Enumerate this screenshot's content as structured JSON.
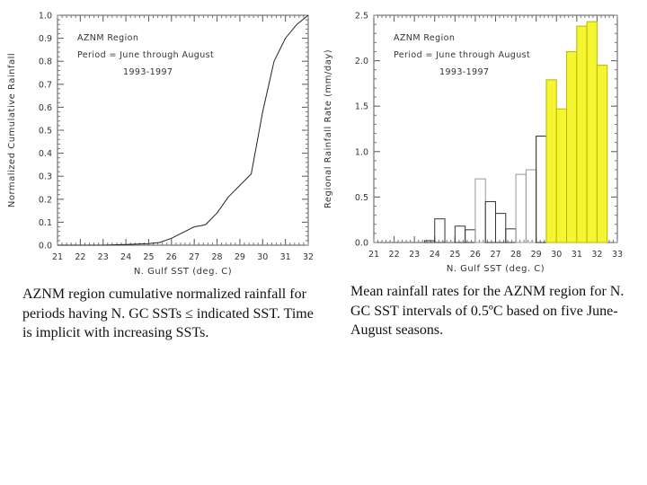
{
  "chart_data": [
    {
      "type": "line",
      "legend_lines": [
        "AZNM Region",
        "Period = June through August",
        "1993-1997"
      ],
      "xlabel": "N. Gulf SST (deg. C)",
      "ylabel": "Normalized Cumulative Rainfall",
      "xlim": [
        21,
        32
      ],
      "ylim": [
        0,
        1
      ],
      "x_ticks": [
        "21",
        "22",
        "23",
        "24",
        "25",
        "26",
        "27",
        "28",
        "29",
        "30",
        "31",
        "32"
      ],
      "y_ticks": [
        "0.0",
        "0.1",
        "0.2",
        "0.3",
        "0.4",
        "0.5",
        "0.6",
        "0.7",
        "0.8",
        "0.9",
        "1.0"
      ],
      "grid": false,
      "series": [
        {
          "x": [
            21,
            23,
            24.0,
            24.5,
            25.0,
            25.5,
            26.0,
            26.5,
            27.0,
            27.3,
            27.5,
            28.0,
            28.5,
            29.0,
            29.5,
            30.0,
            30.5,
            31.0,
            31.5,
            32.0
          ],
          "y": [
            0,
            0,
            0.003,
            0.005,
            0.007,
            0.012,
            0.03,
            0.055,
            0.08,
            0.085,
            0.09,
            0.14,
            0.21,
            0.26,
            0.31,
            0.58,
            0.8,
            0.9,
            0.96,
            1.0
          ]
        }
      ]
    },
    {
      "type": "bar",
      "legend_lines": [
        "AZNM Region",
        "Period = June through August",
        "1993-1997"
      ],
      "xlabel": "N. Gulf SST (deg. C)",
      "ylabel": "Regional Rainfall Rate (mm/day)",
      "xlim": [
        21,
        33
      ],
      "ylim": [
        0,
        2.5
      ],
      "x_ticks": [
        "21",
        "22",
        "23",
        "24",
        "25",
        "26",
        "27",
        "28",
        "29",
        "30",
        "31",
        "32",
        "33"
      ],
      "y_ticks": [
        "0.0",
        "0.5",
        "1.0",
        "1.5",
        "2.0",
        "2.5"
      ],
      "grid": false,
      "highlight_color": "#f5f531",
      "bars": [
        {
          "x0": 23.5,
          "x1": 24.0,
          "value": 0.02,
          "highlight": false
        },
        {
          "x0": 24.0,
          "x1": 24.5,
          "value": 0.26,
          "highlight": false
        },
        {
          "x0": 24.5,
          "x1": 25.0,
          "value": 0.0,
          "highlight": false
        },
        {
          "x0": 25.0,
          "x1": 25.5,
          "value": 0.18,
          "highlight": false
        },
        {
          "x0": 25.5,
          "x1": 26.0,
          "value": 0.14,
          "highlight": false
        },
        {
          "x0": 26.0,
          "x1": 26.5,
          "value": 0.7,
          "highlight": false
        },
        {
          "x0": 26.5,
          "x1": 27.0,
          "value": 0.45,
          "highlight": false
        },
        {
          "x0": 27.0,
          "x1": 27.5,
          "value": 0.32,
          "highlight": false
        },
        {
          "x0": 27.5,
          "x1": 28.0,
          "value": 0.15,
          "highlight": false
        },
        {
          "x0": 28.0,
          "x1": 28.5,
          "value": 0.75,
          "highlight": false
        },
        {
          "x0": 28.5,
          "x1": 29.0,
          "value": 0.8,
          "highlight": false
        },
        {
          "x0": 29.0,
          "x1": 29.5,
          "value": 1.17,
          "highlight": false
        },
        {
          "x0": 29.5,
          "x1": 30.0,
          "value": 1.79,
          "highlight": true
        },
        {
          "x0": 30.0,
          "x1": 30.5,
          "value": 1.47,
          "highlight": true
        },
        {
          "x0": 30.5,
          "x1": 31.0,
          "value": 2.1,
          "highlight": true
        },
        {
          "x0": 31.0,
          "x1": 31.5,
          "value": 2.38,
          "highlight": true
        },
        {
          "x0": 31.5,
          "x1": 32.0,
          "value": 2.43,
          "highlight": true
        },
        {
          "x0": 32.0,
          "x1": 32.5,
          "value": 1.95,
          "highlight": true
        }
      ]
    }
  ],
  "captions": {
    "left": "AZNM region cumulative normalized rainfall for periods having N. GC SSTs ≤ indicated SST.  Time is implicit with increasing SSTs.",
    "right": "Mean rainfall rates for the AZNM region for N. GC SST intervals of 0.5ºC based on five June-August seasons."
  }
}
